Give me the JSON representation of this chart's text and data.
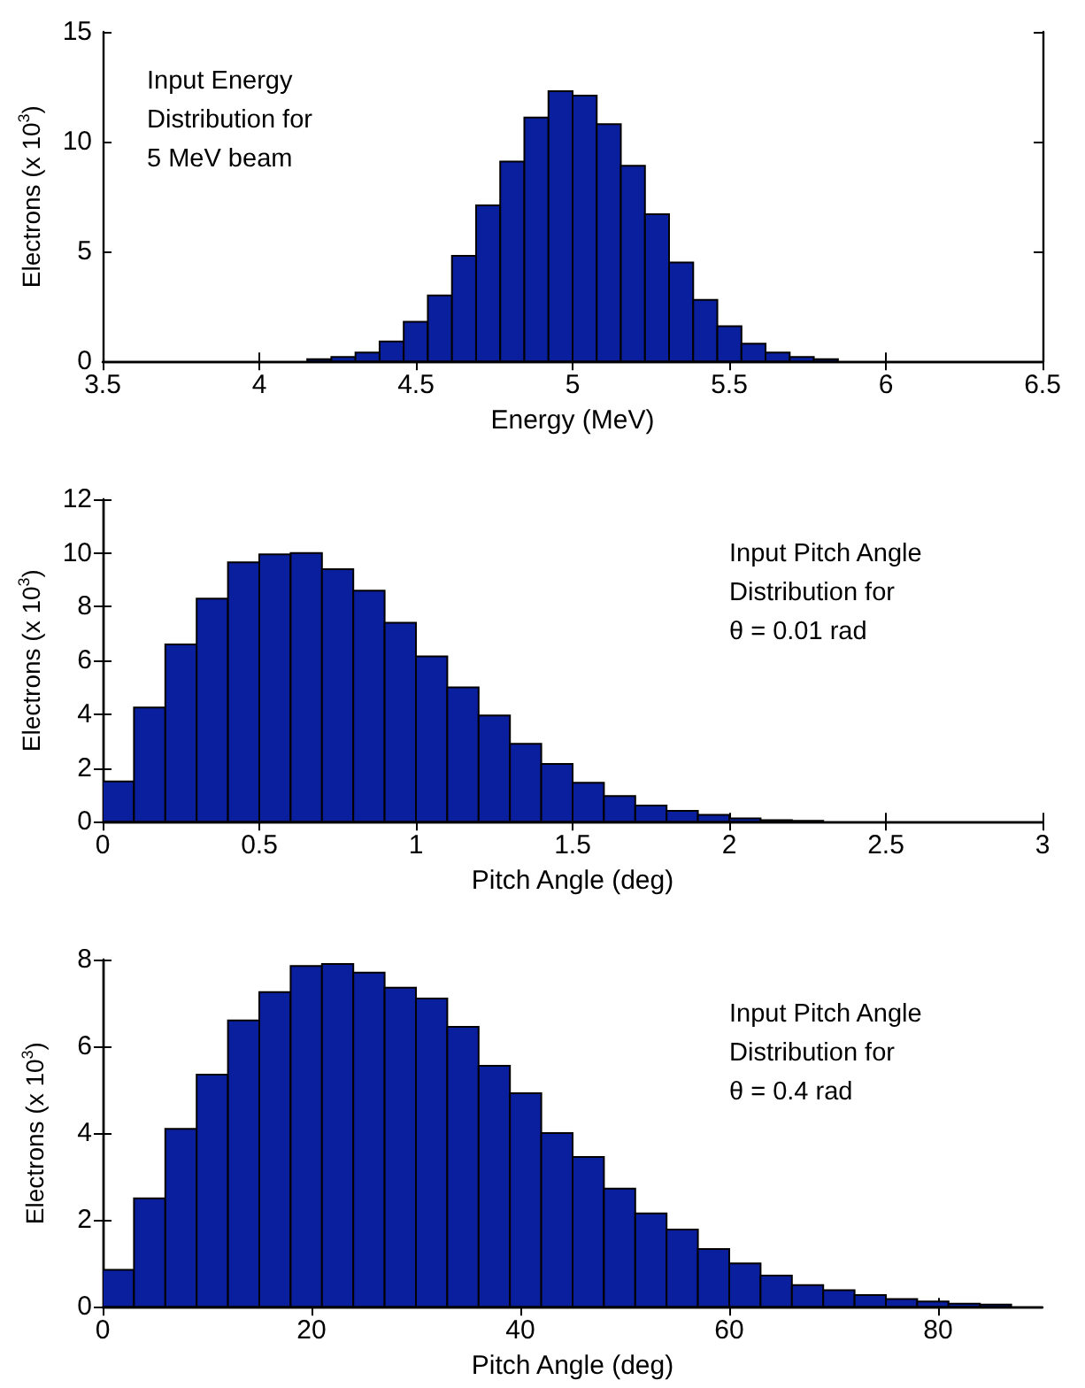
{
  "chart_data": [
    {
      "type": "histogram",
      "xlabel": "Energy (MeV)",
      "ylabel": "Electrons (x 10$^{3}$)",
      "annotations": [
        "Input Energy\nDistribution for\n5 MeV beam"
      ],
      "color": "#0a1f9e",
      "bins": [
        4.153,
        4.23,
        4.307,
        4.384,
        4.461,
        4.538,
        4.615,
        4.692,
        4.769,
        4.846,
        4.923,
        5.0,
        5.077,
        5.154,
        5.231,
        5.308,
        5.385,
        5.462,
        5.539,
        5.616,
        5.693,
        5.77,
        5.847
      ],
      "values": [
        0.1,
        0.2,
        0.4,
        0.9,
        1.8,
        3.0,
        4.8,
        7.1,
        9.1,
        11.1,
        12.3,
        12.1,
        10.8,
        8.9,
        6.7,
        4.5,
        2.8,
        1.6,
        0.8,
        0.4,
        0.2,
        0.1
      ],
      "xlim": [
        3.5,
        6.5
      ],
      "xticks": [
        3.5,
        4,
        4.5,
        5,
        5.5,
        6,
        6.5
      ],
      "ylim": [
        0,
        15
      ],
      "yticks": [
        0,
        5,
        10,
        15
      ],
      "grid": false
    },
    {
      "type": "histogram",
      "xlabel": "Pitch Angle (deg)",
      "ylabel": "Electrons (x 10$^{3}$)",
      "annotations": [
        "Input Pitch Angle\nDistribution for\nθ = 0.01 rad"
      ],
      "color": "#0a1f9e",
      "bins": [
        0,
        0.1,
        0.2,
        0.3,
        0.4,
        0.5,
        0.6,
        0.7,
        0.8,
        0.9,
        1.0,
        1.1,
        1.2,
        1.3,
        1.4,
        1.5,
        1.6,
        1.7,
        1.8,
        1.9,
        2.0,
        2.1,
        2.2,
        2.3
      ],
      "values": [
        1.5,
        4.25,
        6.6,
        8.3,
        9.65,
        9.95,
        10.0,
        9.4,
        8.6,
        7.4,
        6.15,
        5.0,
        3.95,
        2.9,
        2.15,
        1.45,
        0.95,
        0.6,
        0.4,
        0.25,
        0.12,
        0.06,
        0.03
      ],
      "xlim": [
        0,
        3
      ],
      "xticks": [
        0,
        0.5,
        1,
        1.5,
        2,
        2.5,
        3
      ],
      "ylim": [
        0,
        12
      ],
      "yticks": [
        0,
        2,
        4,
        6,
        8,
        10,
        12
      ],
      "grid": false
    },
    {
      "type": "histogram",
      "xlabel": "Pitch Angle (deg)",
      "ylabel": "Electrons (x 10$^{3}$)",
      "annotations": [
        "Input Pitch Angle\nDistribution for\nθ = 0.4 rad"
      ],
      "color": "#0a1f9e",
      "bins": [
        0,
        3,
        6,
        9,
        12,
        15,
        18,
        21,
        24,
        27,
        30,
        33,
        36,
        39,
        42,
        45,
        48,
        51,
        54,
        57,
        60,
        63,
        66,
        69,
        72,
        75,
        78,
        81,
        84,
        87,
        90
      ],
      "values": [
        0.85,
        2.5,
        4.1,
        5.35,
        6.6,
        7.25,
        7.85,
        7.9,
        7.7,
        7.35,
        7.1,
        6.45,
        5.55,
        4.92,
        4.0,
        3.45,
        2.72,
        2.15,
        1.78,
        1.33,
        1.0,
        0.72,
        0.5,
        0.38,
        0.27,
        0.18,
        0.12,
        0.07,
        0.05,
        null
      ],
      "xlim": [
        0,
        90
      ],
      "xticks": [
        0,
        20,
        40,
        60,
        80
      ],
      "ylim": [
        0,
        8
      ],
      "yticks": [
        0,
        2,
        4,
        6,
        8
      ],
      "grid": false
    }
  ]
}
